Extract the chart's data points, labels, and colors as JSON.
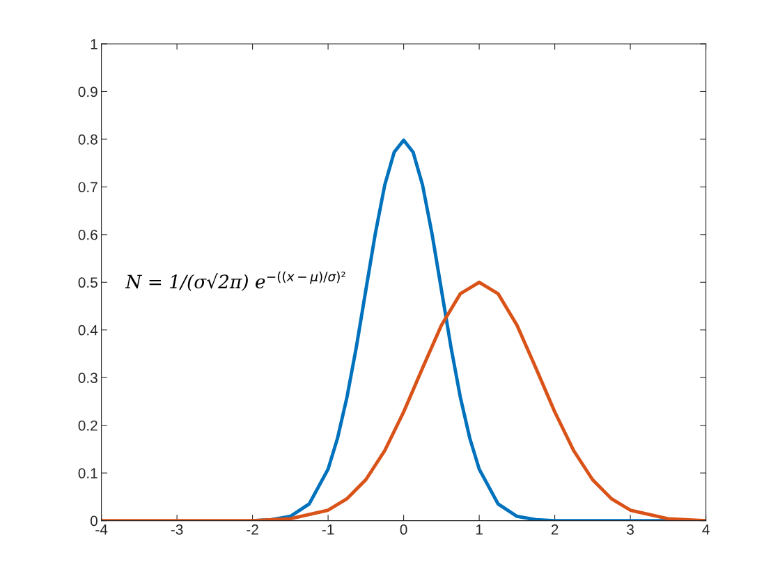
{
  "chart_data": {
    "type": "line",
    "series": [
      {
        "color": "#0072bd",
        "x": [
          -2,
          -1.75,
          -1.5,
          -1.25,
          -1,
          -0.875,
          -0.75,
          -0.625,
          -0.5,
          -0.375,
          -0.25,
          -0.125,
          0,
          0.125,
          0.25,
          0.375,
          0.5,
          0.625,
          0.75,
          0.875,
          1,
          1.25,
          1.5,
          1.75,
          2,
          3,
          4
        ],
        "values": [
          0,
          0.002,
          0.009,
          0.035,
          0.108,
          0.173,
          0.259,
          0.365,
          0.484,
          0.602,
          0.704,
          0.773,
          0.798,
          0.773,
          0.704,
          0.602,
          0.484,
          0.365,
          0.259,
          0.173,
          0.108,
          0.035,
          0.009,
          0.002,
          0,
          0,
          0
        ]
      },
      {
        "color": "#d95319",
        "x": [
          -4,
          -3,
          -2,
          -1.5,
          -1,
          -0.75,
          -0.5,
          -0.25,
          0,
          0.25,
          0.5,
          0.75,
          1,
          1.25,
          1.5,
          1.75,
          2,
          2.25,
          2.5,
          2.75,
          3,
          3.5,
          4
        ],
        "values": [
          0,
          0,
          0,
          0.004,
          0.022,
          0.046,
          0.086,
          0.147,
          0.228,
          0.32,
          0.41,
          0.476,
          0.5,
          0.476,
          0.41,
          0.32,
          0.228,
          0.147,
          0.086,
          0.046,
          0.022,
          0.004,
          0
        ]
      }
    ],
    "annotations": [
      "N = 1/(σ√2π) e$^{−((x−μ)/σ)²}$"
    ],
    "xlim": [
      -4,
      4
    ],
    "xticks": [
      -4,
      -3,
      -2,
      -1,
      0,
      1,
      2,
      3,
      4
    ],
    "ylim": [
      0,
      1
    ],
    "yticks": [
      0,
      0.1,
      0.2,
      0.3,
      0.4,
      0.5,
      0.6,
      0.7,
      0.8,
      0.9,
      1
    ],
    "grid": false,
    "legend": false,
    "marker": "none",
    "line_style": "solid"
  }
}
